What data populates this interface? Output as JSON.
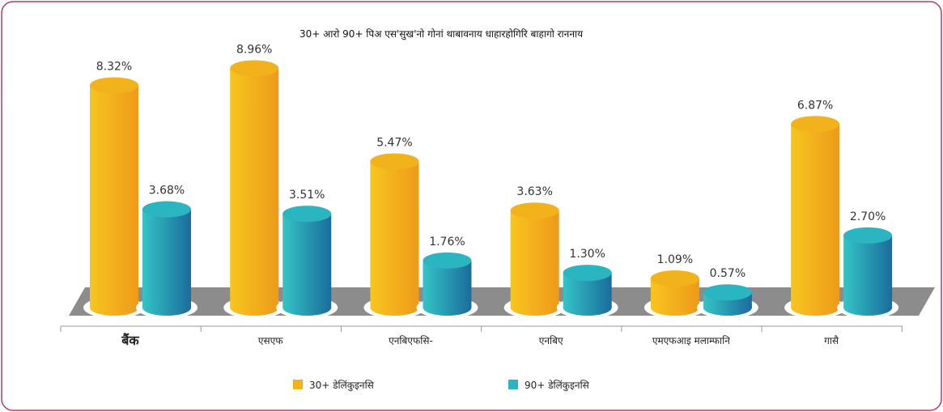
{
  "chart_data": {
    "type": "bar",
    "title": "30+ आरो 90+ पिअ एस'सुख'नो गोनां थाबावनाय धाहारहोगिरि बाहागो राननाय",
    "categories": [
      "बैंक",
      "एसएफ",
      "एनबिएफसि-",
      "एनबिए",
      "एमएफआइ मलाम्फानि",
      "गासै"
    ],
    "series": [
      {
        "name": "30+ डेलिंकुइनसि",
        "color": "#f2b21c",
        "values": [
          8.32,
          8.96,
          5.47,
          3.63,
          1.09,
          6.87
        ],
        "value_labels": [
          "8.32%",
          "8.96%",
          "5.47%",
          "3.63%",
          "1.09%",
          "6.87%"
        ]
      },
      {
        "name": "90+ डेलिंकुइनसि",
        "color": "#2bb5c0",
        "values": [
          3.68,
          3.51,
          1.76,
          1.3,
          0.57,
          2.7
        ],
        "value_labels": [
          "3.68%",
          "3.51%",
          "1.76%",
          "1.30%",
          "0.57%",
          "2.70%"
        ]
      }
    ],
    "ylim": [
      0,
      10
    ]
  }
}
